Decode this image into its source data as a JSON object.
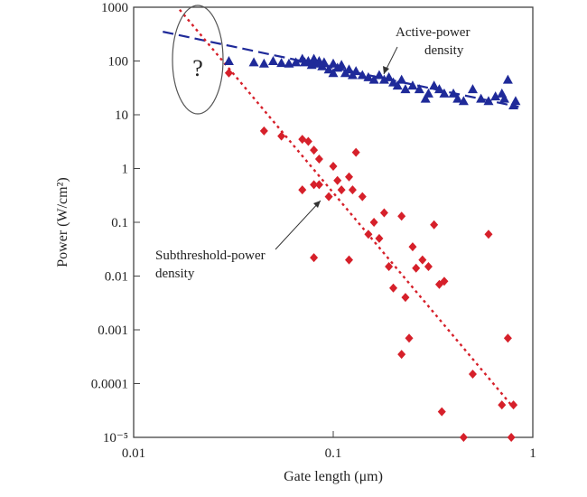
{
  "chart_data": {
    "type": "scatter",
    "xscale": "log",
    "yscale": "log",
    "xlim": [
      0.01,
      1
    ],
    "ylim": [
      1e-05,
      1000
    ],
    "xlabel": "Gate length (μm)",
    "ylabel": "Power (W/cm²)",
    "x_ticks": [
      {
        "value": 0.01,
        "label": "0.01"
      },
      {
        "value": 0.1,
        "label": "0.1"
      },
      {
        "value": 1,
        "label": "1"
      }
    ],
    "y_ticks": [
      {
        "value": 1000,
        "label": "1000"
      },
      {
        "value": 100,
        "label": "100"
      },
      {
        "value": 10,
        "label": "10"
      },
      {
        "value": 1,
        "label": "1"
      },
      {
        "value": 0.1,
        "label": "0.1"
      },
      {
        "value": 0.01,
        "label": "0.01"
      },
      {
        "value": 0.001,
        "label": "0.001"
      },
      {
        "value": 0.0001,
        "label": "0.0001"
      },
      {
        "value": 1e-05,
        "label": "10⁻⁵"
      }
    ],
    "annotations": {
      "active": "Active-power density",
      "active_line1": "Active-power",
      "active_line2": "density",
      "subthreshold": "Subthreshold-power density",
      "sub_line1": "Subthreshold-power",
      "sub_line2": "density",
      "question": "?"
    },
    "series": [
      {
        "name": "Active-power density",
        "marker": "triangle",
        "color": "#1f2a99",
        "points": [
          [
            0.03,
            100
          ],
          [
            0.04,
            95
          ],
          [
            0.045,
            90
          ],
          [
            0.05,
            100
          ],
          [
            0.055,
            92
          ],
          [
            0.06,
            90
          ],
          [
            0.065,
            95
          ],
          [
            0.07,
            110
          ],
          [
            0.072,
            95
          ],
          [
            0.075,
            100
          ],
          [
            0.078,
            85
          ],
          [
            0.08,
            110
          ],
          [
            0.082,
            90
          ],
          [
            0.085,
            100
          ],
          [
            0.088,
            80
          ],
          [
            0.09,
            95
          ],
          [
            0.095,
            70
          ],
          [
            0.1,
            90
          ],
          [
            0.1,
            60
          ],
          [
            0.105,
            75
          ],
          [
            0.11,
            85
          ],
          [
            0.115,
            60
          ],
          [
            0.12,
            70
          ],
          [
            0.125,
            55
          ],
          [
            0.13,
            65
          ],
          [
            0.14,
            55
          ],
          [
            0.15,
            50
          ],
          [
            0.16,
            45
          ],
          [
            0.17,
            55
          ],
          [
            0.18,
            45
          ],
          [
            0.19,
            50
          ],
          [
            0.2,
            40
          ],
          [
            0.21,
            35
          ],
          [
            0.22,
            45
          ],
          [
            0.23,
            30
          ],
          [
            0.25,
            35
          ],
          [
            0.27,
            30
          ],
          [
            0.29,
            20
          ],
          [
            0.3,
            25
          ],
          [
            0.32,
            35
          ],
          [
            0.34,
            30
          ],
          [
            0.36,
            25
          ],
          [
            0.4,
            25
          ],
          [
            0.42,
            20
          ],
          [
            0.45,
            18
          ],
          [
            0.5,
            30
          ],
          [
            0.55,
            20
          ],
          [
            0.6,
            18
          ],
          [
            0.65,
            22
          ],
          [
            0.7,
            25
          ],
          [
            0.72,
            20
          ],
          [
            0.75,
            45
          ],
          [
            0.8,
            15
          ],
          [
            0.82,
            18
          ]
        ]
      },
      {
        "name": "Subthreshold-power density",
        "marker": "diamond",
        "color": "#d6202a",
        "points": [
          [
            0.03,
            60
          ],
          [
            0.045,
            5
          ],
          [
            0.055,
            4
          ],
          [
            0.07,
            3.5
          ],
          [
            0.075,
            3.2
          ],
          [
            0.08,
            2.2
          ],
          [
            0.085,
            1.5
          ],
          [
            0.07,
            0.4
          ],
          [
            0.08,
            0.5
          ],
          [
            0.085,
            0.5
          ],
          [
            0.095,
            0.3
          ],
          [
            0.1,
            1.1
          ],
          [
            0.105,
            0.6
          ],
          [
            0.11,
            0.4
          ],
          [
            0.12,
            0.7
          ],
          [
            0.125,
            0.4
          ],
          [
            0.13,
            2
          ],
          [
            0.14,
            0.3
          ],
          [
            0.15,
            0.06
          ],
          [
            0.16,
            0.1
          ],
          [
            0.17,
            0.05
          ],
          [
            0.18,
            0.15
          ],
          [
            0.19,
            0.015
          ],
          [
            0.2,
            0.006
          ],
          [
            0.22,
            0.13
          ],
          [
            0.23,
            0.004
          ],
          [
            0.25,
            0.035
          ],
          [
            0.26,
            0.014
          ],
          [
            0.28,
            0.02
          ],
          [
            0.3,
            0.015
          ],
          [
            0.32,
            0.09
          ],
          [
            0.34,
            0.007
          ],
          [
            0.36,
            0.008
          ],
          [
            0.08,
            0.022
          ],
          [
            0.12,
            0.02
          ],
          [
            0.24,
            0.0007
          ],
          [
            0.22,
            0.00035
          ],
          [
            0.35,
            3e-05
          ],
          [
            0.45,
            1e-05
          ],
          [
            0.5,
            0.00015
          ],
          [
            0.6,
            0.06
          ],
          [
            0.7,
            4e-05
          ],
          [
            0.75,
            0.0007
          ],
          [
            0.78,
            1e-05
          ],
          [
            0.8,
            4e-05
          ]
        ]
      }
    ],
    "trend_lines": [
      {
        "name": "Active-power trend",
        "style": "dashed",
        "color": "#1f2a99",
        "points": [
          [
            0.014,
            350
          ],
          [
            0.85,
            14
          ]
        ]
      },
      {
        "name": "Subthreshold-power trend",
        "style": "dotted",
        "color": "#d6202a",
        "points": [
          [
            0.017,
            900
          ],
          [
            0.78,
            4e-05
          ]
        ]
      }
    ]
  }
}
